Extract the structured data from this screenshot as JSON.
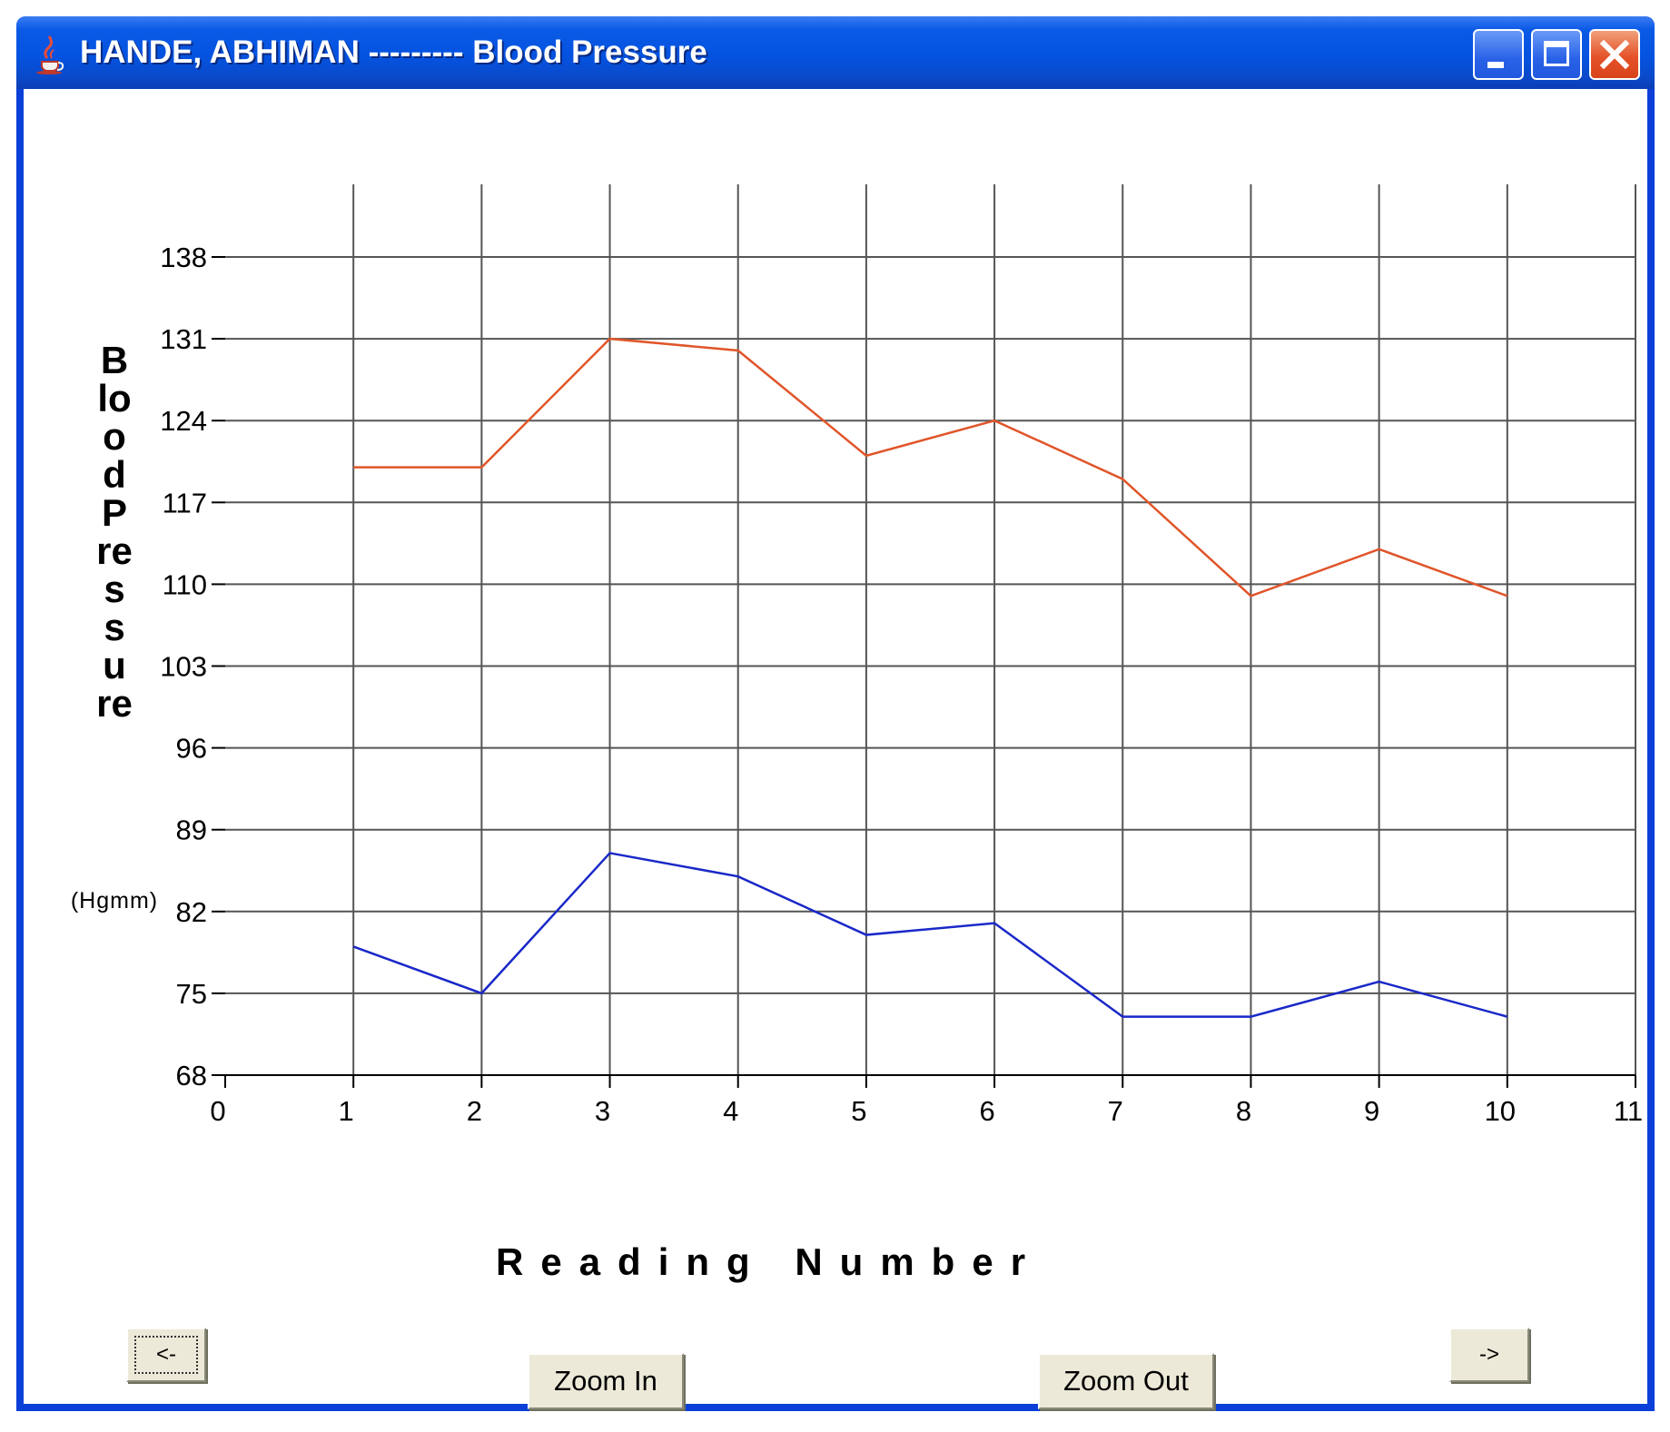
{
  "window": {
    "title": "HANDE, ABHIMAN --------- Blood Pressure"
  },
  "buttons": {
    "prev": "<-",
    "next": "->",
    "zoom_in": "Zoom In",
    "zoom_out": "Zoom Out"
  },
  "chart_data": {
    "type": "line",
    "title": "",
    "xlabel": "Reading Number",
    "ylabel": "Blood Pressure",
    "yunit": "(Hgmm)",
    "xlim": [
      0,
      11
    ],
    "ylim": [
      68,
      138
    ],
    "xticks": [
      0,
      1,
      2,
      3,
      4,
      5,
      6,
      7,
      8,
      9,
      10,
      11
    ],
    "yticks": [
      68,
      75,
      82,
      89,
      96,
      103,
      110,
      117,
      124,
      131,
      138
    ],
    "grid": true,
    "x": [
      1,
      2,
      3,
      4,
      5,
      6,
      7,
      8,
      9,
      10
    ],
    "series": [
      {
        "values": [
          120,
          120,
          131,
          130,
          121,
          124,
          119,
          109,
          113,
          109
        ],
        "color": "#e0552a"
      },
      {
        "values": [
          79,
          75,
          87,
          85,
          80,
          81,
          73,
          73,
          76,
          73
        ],
        "color": "#1a28c8"
      }
    ]
  }
}
